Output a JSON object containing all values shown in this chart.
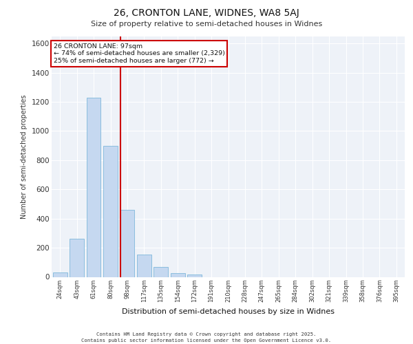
{
  "title_line1": "26, CRONTON LANE, WIDNES, WA8 5AJ",
  "title_line2": "Size of property relative to semi-detached houses in Widnes",
  "xlabel": "Distribution of semi-detached houses by size in Widnes",
  "ylabel": "Number of semi-detached properties",
  "categories": [
    "24sqm",
    "43sqm",
    "61sqm",
    "80sqm",
    "98sqm",
    "117sqm",
    "135sqm",
    "154sqm",
    "172sqm",
    "191sqm",
    "210sqm",
    "228sqm",
    "247sqm",
    "265sqm",
    "284sqm",
    "302sqm",
    "321sqm",
    "339sqm",
    "358sqm",
    "376sqm",
    "395sqm"
  ],
  "values": [
    30,
    260,
    1230,
    900,
    460,
    155,
    70,
    25,
    15,
    0,
    0,
    0,
    0,
    0,
    0,
    0,
    0,
    0,
    0,
    0,
    0
  ],
  "bar_color": "#c5d8f0",
  "bar_edge_color": "#6baed6",
  "vline_x_index": 4,
  "vline_color": "#cc0000",
  "annotation_text": "26 CRONTON LANE: 97sqm\n← 74% of semi-detached houses are smaller (2,329)\n25% of semi-detached houses are larger (772) →",
  "annotation_box_color": "#cc0000",
  "ylim": [
    0,
    1650
  ],
  "yticks": [
    0,
    200,
    400,
    600,
    800,
    1000,
    1200,
    1400,
    1600
  ],
  "background_color": "#eef2f8",
  "grid_color": "#ffffff",
  "footer_line1": "Contains HM Land Registry data © Crown copyright and database right 2025.",
  "footer_line2": "Contains public sector information licensed under the Open Government Licence v3.0."
}
